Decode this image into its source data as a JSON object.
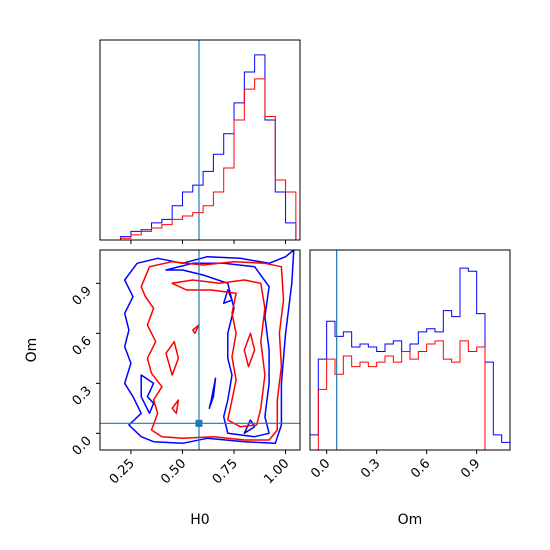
{
  "chart_data": {
    "type": "corner",
    "parameters": [
      "H0",
      "Om"
    ],
    "truth": {
      "H0": 0.58,
      "Om": 0.06
    },
    "colors": {
      "series_a": "#0000ff",
      "series_b": "#ff0000",
      "truth": "#1f77b4"
    },
    "axes": {
      "H0": {
        "range": [
          0.1,
          1.07
        ],
        "ticks": [
          "0.25",
          "0.50",
          "0.75",
          "1.00"
        ],
        "tick_values": [
          0.25,
          0.5,
          0.75,
          1.0
        ]
      },
      "Om": {
        "range": [
          -0.1,
          1.1
        ],
        "ticks": [
          "0.0",
          "0.3",
          "0.6",
          "0.9"
        ],
        "tick_values": [
          0.0,
          0.3,
          0.6,
          0.9
        ]
      }
    },
    "hist_H0": {
      "bin_edges": [
        0.2,
        0.25,
        0.3,
        0.35,
        0.4,
        0.45,
        0.5,
        0.55,
        0.6,
        0.65,
        0.7,
        0.75,
        0.8,
        0.85,
        0.9,
        0.95,
        1.0,
        1.05
      ],
      "series_a": [
        2,
        5,
        6,
        10,
        12,
        20,
        28,
        32,
        40,
        50,
        62,
        80,
        98,
        108,
        70,
        28,
        10
      ],
      "series_b": [
        1,
        3,
        5,
        7,
        9,
        12,
        14,
        16,
        20,
        28,
        42,
        70,
        88,
        94,
        72,
        35,
        28
      ]
    },
    "hist_Om": {
      "bin_edges": [
        -0.1,
        -0.05,
        0.0,
        0.05,
        0.1,
        0.15,
        0.2,
        0.25,
        0.3,
        0.35,
        0.4,
        0.45,
        0.5,
        0.55,
        0.6,
        0.65,
        0.7,
        0.75,
        0.8,
        0.85,
        0.9,
        0.95,
        1.0,
        1.05,
        1.1
      ],
      "series_a": [
        10,
        60,
        85,
        75,
        78,
        68,
        70,
        68,
        65,
        70,
        72,
        65,
        70,
        78,
        80,
        78,
        92,
        88,
        120,
        118,
        90,
        58,
        10,
        5
      ],
      "series_b": [
        0,
        40,
        60,
        50,
        62,
        55,
        58,
        55,
        58,
        62,
        58,
        65,
        60,
        65,
        70,
        72,
        60,
        58,
        72,
        65,
        68,
        0,
        0,
        0
      ]
    },
    "contours": {
      "series_a": [
        [
          [
            0.28,
            1.02
          ],
          [
            0.38,
            1.05
          ],
          [
            0.5,
            1.02
          ],
          [
            0.62,
            1.06
          ],
          [
            0.78,
            1.05
          ],
          [
            0.92,
            1.02
          ],
          [
            1.0,
            1.06
          ],
          [
            1.04,
            1.1
          ],
          [
            1.03,
            0.9
          ],
          [
            1.0,
            0.6
          ],
          [
            0.98,
            0.3
          ],
          [
            0.98,
            0.05
          ],
          [
            0.95,
            -0.06
          ],
          [
            0.8,
            -0.05
          ],
          [
            0.62,
            -0.03
          ],
          [
            0.5,
            -0.06
          ],
          [
            0.36,
            -0.05
          ],
          [
            0.3,
            -0.02
          ],
          [
            0.24,
            0.05
          ],
          [
            0.3,
            0.12
          ],
          [
            0.26,
            0.22
          ],
          [
            0.22,
            0.3
          ],
          [
            0.25,
            0.42
          ],
          [
            0.22,
            0.52
          ],
          [
            0.24,
            0.62
          ],
          [
            0.22,
            0.72
          ],
          [
            0.26,
            0.82
          ],
          [
            0.22,
            0.92
          ],
          [
            0.28,
            1.02
          ]
        ],
        [
          [
            0.42,
            0.98
          ],
          [
            0.55,
            1.02
          ],
          [
            0.7,
            1.02
          ],
          [
            0.85,
            1.0
          ],
          [
            0.92,
            0.88
          ],
          [
            0.9,
            0.7
          ],
          [
            0.92,
            0.5
          ],
          [
            0.92,
            0.3
          ],
          [
            0.9,
            0.1
          ],
          [
            0.92,
            0.0
          ],
          [
            0.85,
            -0.02
          ],
          [
            0.72,
            0.0
          ],
          [
            0.7,
            0.1
          ],
          [
            0.72,
            0.2
          ],
          [
            0.74,
            0.35
          ],
          [
            0.72,
            0.45
          ],
          [
            0.72,
            0.6
          ],
          [
            0.75,
            0.75
          ],
          [
            0.72,
            0.9
          ],
          [
            0.6,
            0.95
          ],
          [
            0.5,
            0.98
          ],
          [
            0.42,
            0.98
          ]
        ],
        [
          [
            0.3,
            0.35
          ],
          [
            0.36,
            0.3
          ],
          [
            0.33,
            0.22
          ],
          [
            0.36,
            0.18
          ],
          [
            0.34,
            0.12
          ],
          [
            0.3,
            0.22
          ],
          [
            0.3,
            0.35
          ]
        ],
        [
          [
            0.63,
            0.15
          ],
          [
            0.65,
            0.22
          ],
          [
            0.66,
            0.33
          ],
          [
            0.64,
            0.2
          ],
          [
            0.63,
            0.15
          ]
        ],
        [
          [
            0.8,
            0.0
          ],
          [
            0.83,
            0.08
          ],
          [
            0.85,
            0.04
          ],
          [
            0.8,
            0.0
          ]
        ],
        [
          [
            0.7,
            0.78
          ],
          [
            0.72,
            0.86
          ],
          [
            0.74,
            0.8
          ],
          [
            0.7,
            0.78
          ]
        ]
      ],
      "series_b": [
        [
          [
            0.34,
            1.0
          ],
          [
            0.45,
            1.03
          ],
          [
            0.6,
            1.01
          ],
          [
            0.75,
            1.03
          ],
          [
            0.9,
            1.02
          ],
          [
            0.98,
            1.0
          ],
          [
            0.99,
            0.8
          ],
          [
            0.97,
            0.6
          ],
          [
            0.98,
            0.4
          ],
          [
            0.96,
            0.2
          ],
          [
            0.96,
            0.02
          ],
          [
            0.92,
            -0.04
          ],
          [
            0.8,
            -0.04
          ],
          [
            0.65,
            -0.02
          ],
          [
            0.5,
            -0.03
          ],
          [
            0.4,
            -0.02
          ],
          [
            0.35,
            0.02
          ],
          [
            0.38,
            0.12
          ],
          [
            0.36,
            0.2
          ],
          [
            0.4,
            0.28
          ],
          [
            0.35,
            0.36
          ],
          [
            0.33,
            0.45
          ],
          [
            0.37,
            0.55
          ],
          [
            0.33,
            0.65
          ],
          [
            0.36,
            0.75
          ],
          [
            0.32,
            0.82
          ],
          [
            0.3,
            0.88
          ],
          [
            0.34,
            1.0
          ]
        ],
        [
          [
            0.45,
            0.9
          ],
          [
            0.55,
            0.92
          ],
          [
            0.68,
            0.9
          ],
          [
            0.8,
            0.92
          ],
          [
            0.88,
            0.9
          ],
          [
            0.9,
            0.75
          ],
          [
            0.88,
            0.55
          ],
          [
            0.9,
            0.35
          ],
          [
            0.88,
            0.15
          ],
          [
            0.86,
            0.05
          ],
          [
            0.78,
            0.04
          ],
          [
            0.72,
            0.08
          ],
          [
            0.74,
            0.2
          ],
          [
            0.76,
            0.32
          ],
          [
            0.74,
            0.46
          ],
          [
            0.76,
            0.6
          ],
          [
            0.74,
            0.72
          ],
          [
            0.76,
            0.84
          ],
          [
            0.64,
            0.86
          ],
          [
            0.52,
            0.86
          ],
          [
            0.45,
            0.9
          ]
        ],
        [
          [
            0.45,
            0.35
          ],
          [
            0.48,
            0.45
          ],
          [
            0.46,
            0.55
          ],
          [
            0.42,
            0.48
          ],
          [
            0.45,
            0.35
          ]
        ],
        [
          [
            0.55,
            0.62
          ],
          [
            0.58,
            0.65
          ],
          [
            0.56,
            0.6
          ],
          [
            0.55,
            0.62
          ]
        ],
        [
          [
            0.82,
            0.4
          ],
          [
            0.85,
            0.5
          ],
          [
            0.83,
            0.6
          ],
          [
            0.8,
            0.5
          ],
          [
            0.82,
            0.4
          ]
        ],
        [
          [
            0.45,
            0.15
          ],
          [
            0.48,
            0.2
          ],
          [
            0.47,
            0.12
          ],
          [
            0.45,
            0.15
          ]
        ]
      ]
    },
    "xlabel_bottom_left": "H0",
    "xlabel_bottom_right": "Om",
    "ylabel_left": "Om"
  }
}
